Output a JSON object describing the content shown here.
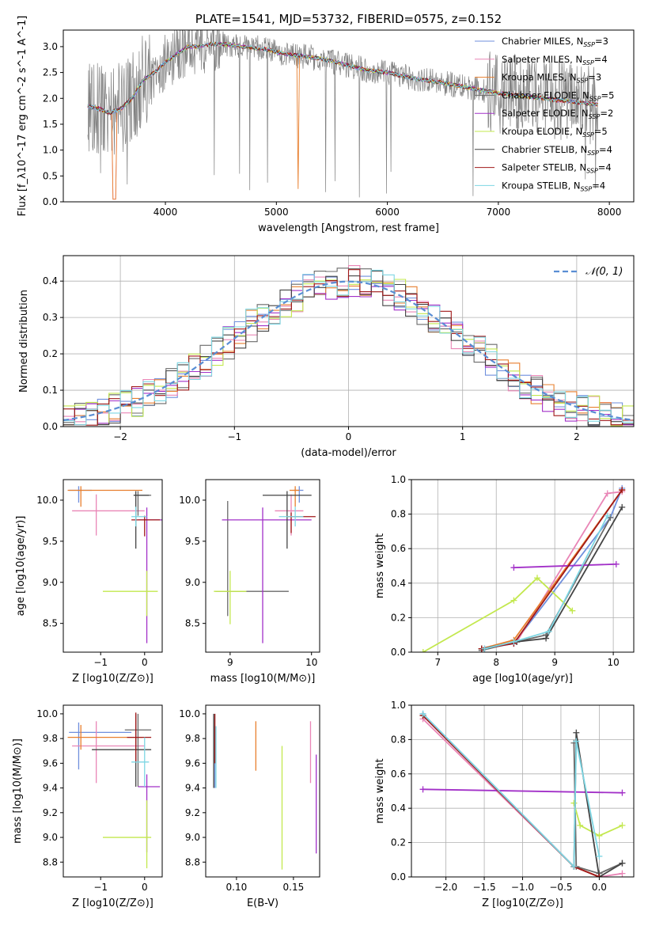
{
  "colors": {
    "Chabrier MILES": "#6f8fdd",
    "Salpeter MILES": "#e985b6",
    "Kroupa MILES": "#e87f2e",
    "Chabrier ELODIE": "#6a6a6a",
    "Salpeter ELODIE": "#a230c8",
    "Kroupa ELODIE": "#c3e84e",
    "Chabrier STELIB": "#444444",
    "Salpeter STELIB": "#a01818",
    "Kroupa STELIB": "#7dd6e3",
    "data": "#808080"
  },
  "chart_data": [
    {
      "id": "spectrum",
      "type": "line",
      "title": "PLATE=1541, MJD=53732, FIBERID=0575, z=0.152",
      "xlabel": "wavelength [Angstrom, rest frame]",
      "ylabel": "Flux [f_λ10^-17 erg cm^-2 s^-1 A^-1]",
      "xlim": [
        3080,
        8220
      ],
      "ylim": [
        0,
        3.32
      ],
      "xticks": [
        "4000",
        "5000",
        "6000",
        "7000",
        "8000"
      ],
      "yticks": [
        "0.0",
        "0.5",
        "1.0",
        "1.5",
        "2.0",
        "2.5",
        "3.0"
      ],
      "legend": [
        {
          "name": "Chabrier MILES",
          "nssp": "3"
        },
        {
          "name": "Salpeter MILES",
          "nssp": "4"
        },
        {
          "name": "Kroupa MILES",
          "nssp": "3"
        },
        {
          "name": "Chabrier ELODIE",
          "nssp": "5"
        },
        {
          "name": "Salpeter ELODIE",
          "nssp": "2"
        },
        {
          "name": "Kroupa ELODIE",
          "nssp": "5"
        },
        {
          "name": "Chabrier STELIB",
          "nssp": "4"
        },
        {
          "name": "Salpeter STELIB",
          "nssp": "4"
        },
        {
          "name": "Kroupa STELIB",
          "nssp": "4"
        }
      ],
      "legend_position": "upper right",
      "model_continuum": {
        "x": [
          3300,
          3400,
          3500,
          3600,
          3700,
          3800,
          3900,
          4000,
          4100,
          4200,
          4300,
          4400,
          4500,
          4700,
          4900,
          5100,
          5300,
          5500,
          5800,
          6000,
          6200,
          6500,
          6800,
          7000,
          7200,
          7400,
          7600,
          7800,
          7900
        ],
        "y": [
          1.85,
          1.8,
          1.72,
          1.8,
          2.0,
          2.35,
          2.5,
          2.7,
          2.85,
          3.0,
          3.0,
          3.05,
          3.05,
          3.0,
          2.95,
          2.85,
          2.8,
          2.72,
          2.55,
          2.5,
          2.4,
          2.3,
          2.18,
          2.1,
          2.05,
          2.0,
          1.95,
          1.9,
          1.88
        ]
      }
    },
    {
      "id": "residuals",
      "type": "line",
      "xlabel": "(data-model)/error",
      "ylabel": "Normed distribution",
      "xlim": [
        -2.5,
        2.5
      ],
      "ylim": [
        0,
        0.47
      ],
      "xticks": [
        "−2",
        "−1",
        "0",
        "1",
        "2"
      ],
      "yticks": [
        "0.0",
        "0.1",
        "0.2",
        "0.3",
        "0.4"
      ],
      "legend": "𝒩(0, 1)",
      "reference": {
        "mean": 0,
        "sigma": 1
      }
    },
    {
      "id": "age_vs_Z",
      "type": "scatter",
      "xlabel": "Z [log10(Z/Z⊙)]",
      "ylabel": "age [log10(age/yr)]",
      "xlim": [
        -1.85,
        0.4
      ],
      "ylim": [
        8.15,
        10.25
      ],
      "xticks": [
        "−1",
        "0"
      ],
      "yticks": [
        "8.5",
        "9.0",
        "9.5",
        "10.0"
      ],
      "points": [
        {
          "s": "Chabrier MILES",
          "x": -1.5,
          "y": 10.12,
          "xerr": [
            0.22,
            0.3
          ],
          "yerr": [
            0.15,
            0.05
          ]
        },
        {
          "s": "Salpeter MILES",
          "x": -1.1,
          "y": 9.87,
          "xerr": [
            0.55,
            1.1
          ],
          "yerr": [
            0.3,
            0.2
          ]
        },
        {
          "s": "Kroupa MILES",
          "x": -1.45,
          "y": 10.12,
          "xerr": [
            0.3,
            1.4
          ],
          "yerr": [
            0.2,
            0.05
          ]
        },
        {
          "s": "Chabrier ELODIE",
          "x": -0.15,
          "y": 10.06,
          "xerr": [
            0.1,
            0.3
          ],
          "yerr": [
            0.25,
            0.05
          ]
        },
        {
          "s": "Salpeter ELODIE",
          "x": 0.05,
          "y": 9.76,
          "xerr": [
            0.2,
            0.35
          ],
          "yerr": [
            1.5,
            0.15
          ]
        },
        {
          "s": "Kroupa ELODIE",
          "x": 0.05,
          "y": 8.89,
          "xerr": [
            1.0,
            0.25
          ],
          "yerr": [
            0.3,
            0.25
          ]
        },
        {
          "s": "Chabrier STELIB",
          "x": -0.2,
          "y": 10.06,
          "xerr": [
            0.05,
            0.3
          ],
          "yerr": [
            0.65,
            0.05
          ]
        },
        {
          "s": "Salpeter STELIB",
          "x": 0.0,
          "y": 9.76,
          "xerr": [
            0.3,
            0.35
          ],
          "yerr": [
            0.2,
            0.05
          ]
        },
        {
          "s": "Kroupa STELIB",
          "x": -0.2,
          "y": 9.8,
          "xerr": [
            0.1,
            0.25
          ],
          "yerr": [
            0.12,
            0.12
          ]
        }
      ]
    },
    {
      "id": "age_vs_mass",
      "type": "scatter",
      "xlabel": "mass [log10(M/M⊙)]",
      "ylabel": "",
      "xlim": [
        8.7,
        10.1
      ],
      "ylim": [
        8.15,
        10.25
      ],
      "xticks": [
        "9",
        "10"
      ],
      "yticks": [
        "8.5",
        "9.0",
        "9.5",
        "10.0"
      ],
      "points": [
        {
          "s": "Chabrier MILES",
          "x": 9.85,
          "y": 10.12,
          "xerr": [
            0.07,
            0.05
          ],
          "yerr": [
            0.15,
            0.05
          ]
        },
        {
          "s": "Salpeter MILES",
          "x": 9.75,
          "y": 9.87,
          "xerr": [
            0.2,
            0.15
          ],
          "yerr": [
            0.3,
            0.2
          ]
        },
        {
          "s": "Kroupa MILES",
          "x": 9.8,
          "y": 10.12,
          "xerr": [
            0.07,
            0.05
          ],
          "yerr": [
            0.2,
            0.05
          ]
        },
        {
          "s": "Chabrier ELODIE",
          "x": 8.97,
          "y": 8.89,
          "xerr": [
            0.15,
            0.75
          ],
          "yerr": [
            0.3,
            1.1
          ]
        },
        {
          "s": "Salpeter ELODIE",
          "x": 9.4,
          "y": 9.76,
          "xerr": [
            0.5,
            0.6
          ],
          "yerr": [
            1.5,
            0.15
          ]
        },
        {
          "s": "Kroupa ELODIE",
          "x": 9.0,
          "y": 8.89,
          "xerr": [
            0.2,
            0.2
          ],
          "yerr": [
            0.4,
            0.25
          ]
        },
        {
          "s": "Chabrier STELIB",
          "x": 9.7,
          "y": 10.06,
          "xerr": [
            0.3,
            0.3
          ],
          "yerr": [
            0.65,
            0.05
          ]
        },
        {
          "s": "Salpeter STELIB",
          "x": 9.75,
          "y": 9.8,
          "xerr": [
            0.05,
            0.3
          ],
          "yerr": [
            0.2,
            0.05
          ]
        },
        {
          "s": "Kroupa STELIB",
          "x": 9.8,
          "y": 9.8,
          "xerr": [
            0.2,
            0.1
          ],
          "yerr": [
            0.12,
            0.12
          ]
        }
      ]
    },
    {
      "id": "mass_weight_vs_age",
      "type": "line",
      "xlabel": "age [log10(age/yr)]",
      "ylabel": "mass weight",
      "xlim": [
        6.55,
        10.35
      ],
      "ylim": [
        0,
        1.0
      ],
      "xticks": [
        "7",
        "8",
        "9",
        "10"
      ],
      "yticks": [
        "0.0",
        "0.2",
        "0.4",
        "0.6",
        "0.8",
        "1.0"
      ],
      "series": [
        {
          "s": "Chabrier MILES",
          "x": [
            7.8,
            8.3,
            9.95,
            10.15
          ],
          "y": [
            0.02,
            0.05,
            0.78,
            0.95
          ]
        },
        {
          "s": "Salpeter MILES",
          "x": [
            7.8,
            8.35,
            9.9,
            10.15
          ],
          "y": [
            0.02,
            0.06,
            0.92,
            0.93
          ]
        },
        {
          "s": "Kroupa MILES",
          "x": [
            7.75,
            8.3,
            10.15
          ],
          "y": [
            0.02,
            0.07,
            0.94
          ]
        },
        {
          "s": "Chabrier ELODIE",
          "x": [
            7.75,
            8.35,
            8.85,
            9.95
          ],
          "y": [
            0.01,
            0.06,
            0.1,
            0.78
          ]
        },
        {
          "s": "Salpeter ELODIE",
          "x": [
            8.3,
            10.05
          ],
          "y": [
            0.49,
            0.51
          ]
        },
        {
          "s": "Kroupa ELODIE",
          "x": [
            6.75,
            8.3,
            8.7,
            9.3
          ],
          "y": [
            0.0,
            0.3,
            0.43,
            0.24
          ]
        },
        {
          "s": "Chabrier STELIB",
          "x": [
            7.75,
            8.35,
            8.85,
            10.15
          ],
          "y": [
            0.02,
            0.06,
            0.08,
            0.84
          ]
        },
        {
          "s": "Salpeter STELIB",
          "x": [
            7.75,
            8.3,
            10.15
          ],
          "y": [
            0.02,
            0.05,
            0.94
          ]
        },
        {
          "s": "Kroupa STELIB",
          "x": [
            7.8,
            8.3,
            8.9,
            9.9
          ],
          "y": [
            0.02,
            0.06,
            0.12,
            0.79
          ]
        }
      ]
    },
    {
      "id": "mass_vs_Z",
      "type": "scatter",
      "xlabel": "Z [log10(Z/Z⊙)]",
      "ylabel": "mass [log10(M/M⊙)]",
      "xlim": [
        -1.85,
        0.4
      ],
      "ylim": [
        8.68,
        10.07
      ],
      "xticks": [
        "−1",
        "0"
      ],
      "yticks": [
        "8.8",
        "9.0",
        "9.2",
        "9.4",
        "9.6",
        "9.8",
        "10.0"
      ],
      "points": [
        {
          "s": "Chabrier MILES",
          "x": -1.5,
          "y": 9.85,
          "xerr": [
            0.22,
            1.2
          ],
          "yerr": [
            0.3,
            0.08
          ]
        },
        {
          "s": "Salpeter MILES",
          "x": -1.1,
          "y": 9.74,
          "xerr": [
            0.55,
            1.1
          ],
          "yerr": [
            0.3,
            0.2
          ]
        },
        {
          "s": "Kroupa MILES",
          "x": -1.45,
          "y": 9.81,
          "xerr": [
            0.3,
            1.4
          ],
          "yerr": [
            0.1,
            0.1
          ]
        },
        {
          "s": "Chabrier ELODIE",
          "x": -0.15,
          "y": 9.87,
          "xerr": [
            0.3,
            0.3
          ],
          "yerr": [
            0.46,
            0.13
          ]
        },
        {
          "s": "Salpeter ELODIE",
          "x": 0.05,
          "y": 9.41,
          "xerr": [
            0.2,
            0.3
          ],
          "yerr": [
            0.53,
            0.1
          ]
        },
        {
          "s": "Kroupa ELODIE",
          "x": 0.05,
          "y": 9.0,
          "xerr": [
            1.0,
            0.1
          ],
          "yerr": [
            0.25,
            0.3
          ]
        },
        {
          "s": "Chabrier STELIB",
          "x": -0.2,
          "y": 9.71,
          "xerr": [
            1.0,
            0.35
          ],
          "yerr": [
            0.3,
            0.29
          ]
        },
        {
          "s": "Salpeter STELIB",
          "x": -0.2,
          "y": 9.81,
          "xerr": [
            0.2,
            0.35
          ],
          "yerr": [
            0.2,
            0.2
          ]
        },
        {
          "s": "Kroupa STELIB",
          "x": 0.0,
          "y": 9.61,
          "xerr": [
            0.3,
            0.1
          ],
          "yerr": [
            0.2,
            0.2
          ]
        }
      ]
    },
    {
      "id": "mass_vs_ebv",
      "type": "scatter",
      "xlabel": "E(B-V)",
      "ylabel": "",
      "xlim": [
        0.073,
        0.173
      ],
      "ylim": [
        8.68,
        10.07
      ],
      "xticks": [
        "0.10",
        "0.15"
      ],
      "yticks": [
        "8.8",
        "9.0",
        "9.2",
        "9.4",
        "9.6",
        "9.8",
        "10.0"
      ],
      "points": [
        {
          "s": "Chabrier MILES",
          "x": 0.081,
          "y": 9.7,
          "xerr": [
            0,
            0
          ],
          "yerr": [
            0.3,
            0.2
          ]
        },
        {
          "s": "Salpeter MILES",
          "x": 0.165,
          "y": 9.74,
          "xerr": [
            0,
            0
          ],
          "yerr": [
            0.3,
            0.2
          ]
        },
        {
          "s": "Kroupa MILES",
          "x": 0.117,
          "y": 9.74,
          "xerr": [
            0,
            0
          ],
          "yerr": [
            0.2,
            0.2
          ]
        },
        {
          "s": "Chabrier ELODIE",
          "x": 0.081,
          "y": 9.8,
          "xerr": [
            0,
            0
          ],
          "yerr": [
            0.2,
            0.2
          ]
        },
        {
          "s": "Salpeter ELODIE",
          "x": 0.17,
          "y": 9.27,
          "xerr": [
            0,
            0
          ],
          "yerr": [
            0.4,
            0.4
          ]
        },
        {
          "s": "Kroupa ELODIE",
          "x": 0.14,
          "y": 9.24,
          "xerr": [
            0,
            0
          ],
          "yerr": [
            0.5,
            0.5
          ]
        },
        {
          "s": "Chabrier STELIB",
          "x": 0.08,
          "y": 9.7,
          "xerr": [
            0,
            0
          ],
          "yerr": [
            0.3,
            0.3
          ]
        },
        {
          "s": "Salpeter STELIB",
          "x": 0.081,
          "y": 9.8,
          "xerr": [
            0,
            0
          ],
          "yerr": [
            0.2,
            0.2
          ]
        },
        {
          "s": "Kroupa STELIB",
          "x": 0.082,
          "y": 9.65,
          "xerr": [
            0,
            0
          ],
          "yerr": [
            0.25,
            0.25
          ]
        }
      ]
    },
    {
      "id": "mass_weight_vs_Z",
      "type": "line",
      "xlabel": "Z [log10(Z/Z⊙)]",
      "ylabel": "mass weight",
      "xlim": [
        -2.45,
        0.45
      ],
      "ylim": [
        0,
        1.0
      ],
      "xticks": [
        "−2.0",
        "−1.5",
        "−1.0",
        "−0.5",
        "0.0"
      ],
      "yticks": [
        "0.0",
        "0.2",
        "0.4",
        "0.6",
        "0.8",
        "1.0"
      ],
      "series": [
        {
          "s": "Chabrier MILES",
          "x": [
            -2.3,
            -0.33,
            0.0
          ],
          "y": [
            0.95,
            0.06,
            0.0
          ]
        },
        {
          "s": "Salpeter MILES",
          "x": [
            -2.3,
            -0.33,
            0.0,
            0.3
          ],
          "y": [
            0.92,
            0.06,
            0.0,
            0.02
          ]
        },
        {
          "s": "Kroupa MILES",
          "x": [
            -2.3,
            -0.33,
            0.0
          ],
          "y": [
            0.94,
            0.06,
            0.0
          ]
        },
        {
          "s": "Chabrier ELODIE",
          "x": [
            -0.33,
            -0.3,
            0.0,
            0.3
          ],
          "y": [
            0.78,
            0.06,
            0.02,
            0.08
          ]
        },
        {
          "s": "Salpeter ELODIE",
          "x": [
            -2.3,
            0.3
          ],
          "y": [
            0.51,
            0.49
          ]
        },
        {
          "s": "Kroupa ELODIE",
          "x": [
            -0.33,
            -0.25,
            0.0,
            0.3
          ],
          "y": [
            0.43,
            0.3,
            0.24,
            0.3
          ]
        },
        {
          "s": "Chabrier STELIB",
          "x": [
            -2.3,
            -0.33,
            -0.3,
            0.0,
            0.3
          ],
          "y": [
            0.94,
            0.06,
            0.84,
            0.0,
            0.08
          ]
        },
        {
          "s": "Salpeter STELIB",
          "x": [
            -2.3,
            -0.33,
            0.0
          ],
          "y": [
            0.94,
            0.06,
            0.0
          ]
        },
        {
          "s": "Kroupa STELIB",
          "x": [
            -2.3,
            -0.33,
            -0.3,
            0.0
          ],
          "y": [
            0.95,
            0.06,
            0.79,
            0.12
          ]
        }
      ]
    }
  ]
}
